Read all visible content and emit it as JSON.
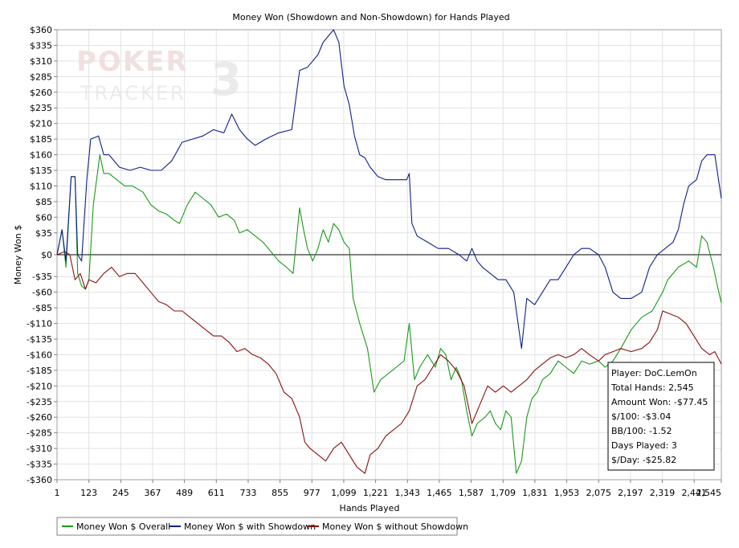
{
  "chart_data": {
    "type": "line",
    "title": "Money Won (Showdown and Non-Showdown) for Hands Played",
    "xlabel": "Hands Played",
    "ylabel": "Money Won $",
    "xlim": [
      1,
      2545
    ],
    "ylim": [
      -360,
      360
    ],
    "x_ticks": [
      1,
      123,
      245,
      367,
      489,
      611,
      733,
      855,
      977,
      1099,
      1221,
      1343,
      1465,
      1587,
      1709,
      1831,
      1953,
      2075,
      2197,
      2319,
      2441,
      2545
    ],
    "x_tick_labels": [
      "1",
      "123",
      "245",
      "367",
      "489",
      "611",
      "733",
      "855",
      "977",
      "1,099",
      "1,221",
      "1,343",
      "1,465",
      "1,587",
      "1,709",
      "1,831",
      "1,953",
      "2,075",
      "2,197",
      "2,319",
      "2,441",
      "2,545"
    ],
    "y_ticks": [
      360,
      335,
      310,
      285,
      260,
      235,
      210,
      185,
      160,
      135,
      110,
      85,
      60,
      35,
      0,
      -35,
      -60,
      -85,
      -110,
      -135,
      -160,
      -185,
      -210,
      -235,
      -260,
      -285,
      -310,
      -335,
      -360
    ],
    "y_tick_labels": [
      "$360",
      "$335",
      "$310",
      "$285",
      "$260",
      "$235",
      "$210",
      "$185",
      "$160",
      "$135",
      "$110",
      "$85",
      "$60",
      "$35",
      "$0",
      "-$35",
      "-$60",
      "-$85",
      "-$110",
      "-$135",
      "-$160",
      "-$185",
      "-$210",
      "-$235",
      "-$260",
      "-$285",
      "-$310",
      "-$335",
      "-$360"
    ],
    "grid": true,
    "legend_position": "bottom-left",
    "series": [
      {
        "name": "Money Won $ Overall",
        "color": "#1a9a1a",
        "points": [
          [
            1,
            0
          ],
          [
            20,
            40
          ],
          [
            35,
            -20
          ],
          [
            55,
            125
          ],
          [
            70,
            125
          ],
          [
            80,
            -30
          ],
          [
            95,
            -50
          ],
          [
            110,
            -55
          ],
          [
            123,
            -40
          ],
          [
            140,
            80
          ],
          [
            165,
            160
          ],
          [
            180,
            130
          ],
          [
            200,
            130
          ],
          [
            230,
            120
          ],
          [
            260,
            110
          ],
          [
            290,
            110
          ],
          [
            330,
            100
          ],
          [
            360,
            80
          ],
          [
            390,
            70
          ],
          [
            420,
            65
          ],
          [
            450,
            55
          ],
          [
            470,
            50
          ],
          [
            500,
            80
          ],
          [
            530,
            100
          ],
          [
            560,
            90
          ],
          [
            590,
            80
          ],
          [
            620,
            60
          ],
          [
            650,
            65
          ],
          [
            680,
            55
          ],
          [
            700,
            35
          ],
          [
            730,
            40
          ],
          [
            760,
            30
          ],
          [
            790,
            20
          ],
          [
            820,
            5
          ],
          [
            850,
            -10
          ],
          [
            880,
            -20
          ],
          [
            905,
            -30
          ],
          [
            930,
            75
          ],
          [
            945,
            40
          ],
          [
            960,
            10
          ],
          [
            980,
            -10
          ],
          [
            1000,
            10
          ],
          [
            1020,
            40
          ],
          [
            1040,
            20
          ],
          [
            1060,
            50
          ],
          [
            1080,
            40
          ],
          [
            1100,
            20
          ],
          [
            1120,
            10
          ],
          [
            1135,
            -70
          ],
          [
            1160,
            -110
          ],
          [
            1190,
            -150
          ],
          [
            1215,
            -220
          ],
          [
            1240,
            -200
          ],
          [
            1270,
            -190
          ],
          [
            1300,
            -180
          ],
          [
            1330,
            -170
          ],
          [
            1350,
            -110
          ],
          [
            1370,
            -200
          ],
          [
            1390,
            -180
          ],
          [
            1420,
            -160
          ],
          [
            1450,
            -180
          ],
          [
            1470,
            -150
          ],
          [
            1490,
            -160
          ],
          [
            1510,
            -200
          ],
          [
            1530,
            -180
          ],
          [
            1550,
            -200
          ],
          [
            1570,
            -250
          ],
          [
            1590,
            -290
          ],
          [
            1610,
            -270
          ],
          [
            1640,
            -260
          ],
          [
            1660,
            -250
          ],
          [
            1680,
            -270
          ],
          [
            1700,
            -280
          ],
          [
            1720,
            -250
          ],
          [
            1740,
            -260
          ],
          [
            1760,
            -350
          ],
          [
            1780,
            -330
          ],
          [
            1800,
            -260
          ],
          [
            1820,
            -230
          ],
          [
            1840,
            -220
          ],
          [
            1860,
            -200
          ],
          [
            1890,
            -190
          ],
          [
            1920,
            -170
          ],
          [
            1950,
            -180
          ],
          [
            1980,
            -190
          ],
          [
            2010,
            -170
          ],
          [
            2040,
            -175
          ],
          [
            2075,
            -170
          ],
          [
            2100,
            -180
          ],
          [
            2130,
            -170
          ],
          [
            2160,
            -150
          ],
          [
            2200,
            -120
          ],
          [
            2240,
            -100
          ],
          [
            2280,
            -90
          ],
          [
            2320,
            -60
          ],
          [
            2340,
            -40
          ],
          [
            2380,
            -20
          ],
          [
            2420,
            -10
          ],
          [
            2450,
            -20
          ],
          [
            2470,
            30
          ],
          [
            2490,
            20
          ],
          [
            2515,
            -20
          ],
          [
            2530,
            -50
          ],
          [
            2545,
            -77
          ]
        ]
      },
      {
        "name": "Money Won $ with Showdown",
        "color": "#0f1f8c",
        "points": [
          [
            1,
            0
          ],
          [
            20,
            40
          ],
          [
            35,
            -10
          ],
          [
            55,
            125
          ],
          [
            70,
            125
          ],
          [
            80,
            0
          ],
          [
            95,
            -10
          ],
          [
            115,
            120
          ],
          [
            130,
            185
          ],
          [
            160,
            190
          ],
          [
            180,
            160
          ],
          [
            200,
            160
          ],
          [
            240,
            140
          ],
          [
            280,
            135
          ],
          [
            320,
            140
          ],
          [
            360,
            135
          ],
          [
            400,
            135
          ],
          [
            440,
            150
          ],
          [
            480,
            180
          ],
          [
            520,
            185
          ],
          [
            560,
            190
          ],
          [
            600,
            200
          ],
          [
            640,
            195
          ],
          [
            670,
            225
          ],
          [
            700,
            200
          ],
          [
            730,
            185
          ],
          [
            760,
            175
          ],
          [
            800,
            185
          ],
          [
            850,
            195
          ],
          [
            900,
            200
          ],
          [
            930,
            295
          ],
          [
            960,
            300
          ],
          [
            1000,
            320
          ],
          [
            1020,
            340
          ],
          [
            1060,
            360
          ],
          [
            1080,
            340
          ],
          [
            1100,
            270
          ],
          [
            1120,
            240
          ],
          [
            1140,
            190
          ],
          [
            1160,
            160
          ],
          [
            1180,
            155
          ],
          [
            1200,
            140
          ],
          [
            1230,
            125
          ],
          [
            1260,
            120
          ],
          [
            1300,
            120
          ],
          [
            1340,
            120
          ],
          [
            1350,
            130
          ],
          [
            1360,
            50
          ],
          [
            1380,
            30
          ],
          [
            1420,
            20
          ],
          [
            1460,
            10
          ],
          [
            1500,
            10
          ],
          [
            1540,
            0
          ],
          [
            1570,
            -10
          ],
          [
            1590,
            10
          ],
          [
            1610,
            -10
          ],
          [
            1630,
            -20
          ],
          [
            1660,
            -30
          ],
          [
            1690,
            -40
          ],
          [
            1720,
            -40
          ],
          [
            1750,
            -60
          ],
          [
            1780,
            -150
          ],
          [
            1800,
            -70
          ],
          [
            1830,
            -80
          ],
          [
            1860,
            -60
          ],
          [
            1890,
            -40
          ],
          [
            1920,
            -40
          ],
          [
            1950,
            -20
          ],
          [
            1980,
            0
          ],
          [
            2010,
            10
          ],
          [
            2040,
            10
          ],
          [
            2075,
            0
          ],
          [
            2100,
            -20
          ],
          [
            2130,
            -60
          ],
          [
            2160,
            -70
          ],
          [
            2200,
            -70
          ],
          [
            2240,
            -60
          ],
          [
            2270,
            -20
          ],
          [
            2300,
            0
          ],
          [
            2330,
            10
          ],
          [
            2360,
            20
          ],
          [
            2380,
            40
          ],
          [
            2400,
            80
          ],
          [
            2420,
            110
          ],
          [
            2450,
            120
          ],
          [
            2470,
            150
          ],
          [
            2490,
            160
          ],
          [
            2520,
            160
          ],
          [
            2545,
            90
          ]
        ]
      },
      {
        "name": "Money Won $ without Showdown",
        "color": "#8a1010",
        "points": [
          [
            1,
            0
          ],
          [
            30,
            5
          ],
          [
            50,
            0
          ],
          [
            70,
            -40
          ],
          [
            90,
            -30
          ],
          [
            110,
            -55
          ],
          [
            123,
            -40
          ],
          [
            150,
            -45
          ],
          [
            180,
            -30
          ],
          [
            210,
            -20
          ],
          [
            240,
            -35
          ],
          [
            270,
            -30
          ],
          [
            300,
            -30
          ],
          [
            330,
            -45
          ],
          [
            360,
            -60
          ],
          [
            390,
            -75
          ],
          [
            420,
            -80
          ],
          [
            450,
            -90
          ],
          [
            480,
            -90
          ],
          [
            510,
            -100
          ],
          [
            540,
            -110
          ],
          [
            570,
            -120
          ],
          [
            600,
            -130
          ],
          [
            630,
            -130
          ],
          [
            660,
            -140
          ],
          [
            690,
            -155
          ],
          [
            720,
            -150
          ],
          [
            750,
            -160
          ],
          [
            780,
            -165
          ],
          [
            810,
            -175
          ],
          [
            840,
            -190
          ],
          [
            870,
            -220
          ],
          [
            900,
            -230
          ],
          [
            930,
            -260
          ],
          [
            950,
            -300
          ],
          [
            970,
            -310
          ],
          [
            1000,
            -320
          ],
          [
            1030,
            -330
          ],
          [
            1060,
            -310
          ],
          [
            1090,
            -300
          ],
          [
            1120,
            -320
          ],
          [
            1150,
            -340
          ],
          [
            1180,
            -350
          ],
          [
            1200,
            -320
          ],
          [
            1230,
            -310
          ],
          [
            1260,
            -290
          ],
          [
            1290,
            -280
          ],
          [
            1320,
            -270
          ],
          [
            1350,
            -250
          ],
          [
            1380,
            -210
          ],
          [
            1410,
            -200
          ],
          [
            1440,
            -180
          ],
          [
            1470,
            -160
          ],
          [
            1500,
            -170
          ],
          [
            1530,
            -185
          ],
          [
            1560,
            -210
          ],
          [
            1590,
            -270
          ],
          [
            1620,
            -240
          ],
          [
            1650,
            -210
          ],
          [
            1680,
            -220
          ],
          [
            1710,
            -210
          ],
          [
            1740,
            -220
          ],
          [
            1770,
            -210
          ],
          [
            1800,
            -200
          ],
          [
            1830,
            -185
          ],
          [
            1860,
            -175
          ],
          [
            1890,
            -165
          ],
          [
            1920,
            -160
          ],
          [
            1950,
            -165
          ],
          [
            1980,
            -160
          ],
          [
            2010,
            -150
          ],
          [
            2040,
            -160
          ],
          [
            2075,
            -170
          ],
          [
            2100,
            -160
          ],
          [
            2130,
            -155
          ],
          [
            2160,
            -150
          ],
          [
            2200,
            -155
          ],
          [
            2240,
            -150
          ],
          [
            2270,
            -140
          ],
          [
            2300,
            -120
          ],
          [
            2320,
            -90
          ],
          [
            2350,
            -95
          ],
          [
            2380,
            -100
          ],
          [
            2410,
            -110
          ],
          [
            2440,
            -130
          ],
          [
            2470,
            -150
          ],
          [
            2500,
            -160
          ],
          [
            2520,
            -155
          ],
          [
            2545,
            -175
          ]
        ]
      }
    ],
    "info_box": [
      "Player: DoC.LemOn",
      "Total Hands: 2,545",
      "Amount Won: -$77.45",
      "$/100: -$3.04",
      "BB/100: -1.52",
      "Days Played: 3",
      "$/Day: -$25.82"
    ],
    "watermark": "POKER TRACKER 3"
  }
}
